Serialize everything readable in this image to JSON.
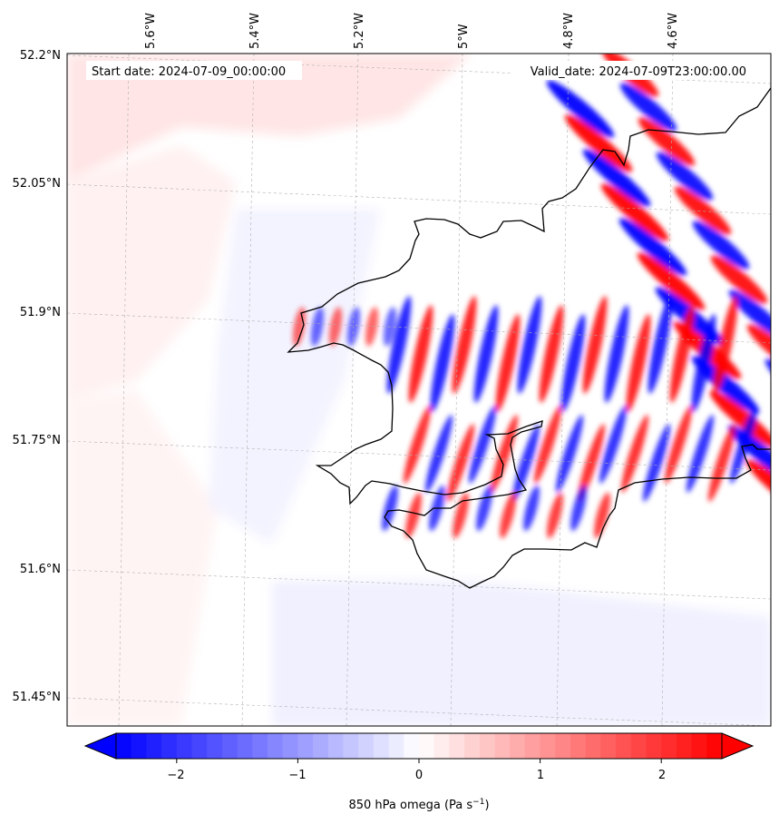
{
  "map": {
    "start_label": "Start date: 2024-07-09_00:00:00",
    "valid_label": "Valid_date: 2024-07-09T23:00:00.00",
    "lon_ticks": [
      "5.6°W",
      "5.4°W",
      "5.2°W",
      "5°W",
      "4.8°W",
      "4.6°W"
    ],
    "lat_ticks": [
      "52.2°N",
      "52.05°N",
      "51.9°N",
      "51.75°N",
      "51.6°N",
      "51.45°N"
    ],
    "field_colors": {
      "negative": "#0000ff",
      "zero": "#ffffff",
      "positive": "#ff0000"
    }
  },
  "colorbar": {
    "label_main": "850 hPa omega (Pa s",
    "label_exp": "−1",
    "label_close": ")",
    "tick_values": [
      -2,
      -1,
      0,
      1,
      2
    ],
    "tick_labels": [
      "−2",
      "−1",
      "0",
      "1",
      "2"
    ],
    "range": [
      -2.5,
      2.5
    ],
    "extend": "both"
  }
}
